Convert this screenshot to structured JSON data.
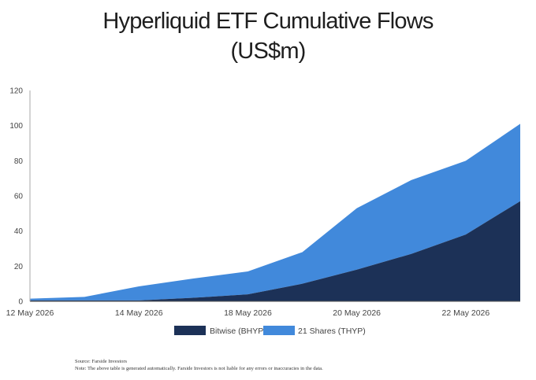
{
  "title_line1": "Hyperliquid ETF Cumulative Flows",
  "title_line2": "(US$m)",
  "source": "Source: Farside Investors",
  "note": "Note: The above table is generated automatically. Farside Investors is not liable for any errors or inaccuracies in the data.",
  "chart_data": {
    "type": "area",
    "stacked": true,
    "x": [
      "12 May 2026",
      "13 May 2026",
      "14 May 2026",
      "15 May 2026",
      "18 May 2026",
      "19 May 2026",
      "20 May 2026",
      "21 May 2026",
      "22 May 2026",
      "23 May 2026"
    ],
    "x_tick_labels": [
      "12 May 2026",
      "14 May 2026",
      "18 May 2026",
      "20 May 2026",
      "22 May 2026"
    ],
    "ylim": [
      0,
      120
    ],
    "y_ticks": [
      0,
      20,
      40,
      60,
      80,
      100,
      120
    ],
    "series": [
      {
        "name": "Bitwise (BHYP)",
        "color": "#1c3157",
        "values": [
          0.5,
          0.5,
          0.5,
          2,
          4,
          10,
          18,
          27,
          38,
          57
        ]
      },
      {
        "name": "21 Shares (THYP)",
        "color": "#4189db",
        "values": [
          1,
          2,
          8,
          11,
          13,
          18,
          35,
          42,
          42,
          44
        ]
      }
    ],
    "grid": false,
    "legend_position": "bottom"
  }
}
